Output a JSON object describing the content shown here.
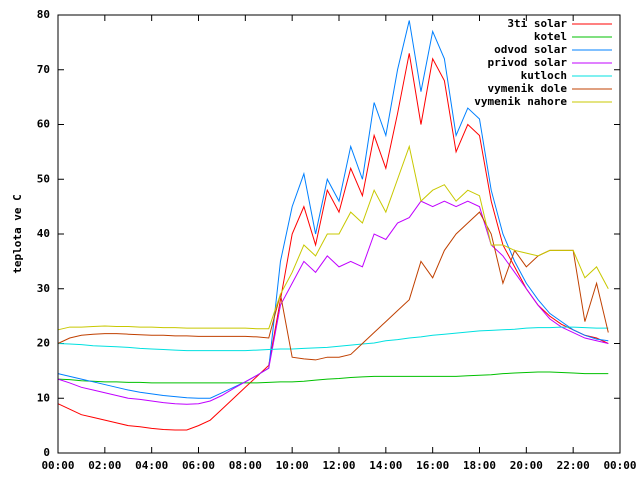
{
  "chart_data": {
    "type": "line",
    "ylabel": "teplota ve C",
    "xlim": [
      0,
      24
    ],
    "ylim": [
      0,
      80
    ],
    "yticks": [
      0,
      10,
      20,
      30,
      40,
      50,
      60,
      70,
      80
    ],
    "xticks": [
      {
        "value": 0,
        "label": "00:00"
      },
      {
        "value": 2,
        "label": "02:00"
      },
      {
        "value": 4,
        "label": "04:00"
      },
      {
        "value": 6,
        "label": "06:00"
      },
      {
        "value": 8,
        "label": "08:00"
      },
      {
        "value": 10,
        "label": "10:00"
      },
      {
        "value": 12,
        "label": "12:00"
      },
      {
        "value": 14,
        "label": "14:00"
      },
      {
        "value": 16,
        "label": "16:00"
      },
      {
        "value": 18,
        "label": "18:00"
      },
      {
        "value": 20,
        "label": "20:00"
      },
      {
        "value": 22,
        "label": "22:00"
      },
      {
        "value": 24,
        "label": "00:00"
      }
    ],
    "legend": "top-right",
    "x": [
      0,
      0.5,
      1,
      1.5,
      2,
      2.5,
      3,
      3.5,
      4,
      4.5,
      5,
      5.5,
      6,
      6.5,
      7,
      7.5,
      8,
      8.5,
      9,
      9.5,
      10,
      10.5,
      11,
      11.5,
      12,
      12.5,
      13,
      13.5,
      14,
      14.5,
      15,
      15.5,
      16,
      16.5,
      17,
      17.5,
      18,
      18.5,
      19,
      19.5,
      20,
      20.5,
      21,
      21.5,
      22,
      22.5,
      23,
      23.5
    ],
    "series": [
      {
        "name": "3ti solar",
        "color": "#ff0000",
        "values": [
          9,
          8,
          7,
          6.5,
          6,
          5.5,
          5,
          4.8,
          4.5,
          4.3,
          4.2,
          4.2,
          5,
          6,
          8,
          10,
          12,
          14,
          16,
          28,
          40,
          45,
          38,
          48,
          44,
          52,
          47,
          58,
          52,
          62,
          73,
          60,
          72,
          68,
          55,
          60,
          58,
          46,
          38,
          34,
          30,
          27,
          25,
          23.5,
          22.5,
          21.5,
          21,
          20
        ]
      },
      {
        "name": "kotel",
        "color": "#00c000",
        "values": [
          13.5,
          13.4,
          13.2,
          13.1,
          13,
          13,
          12.9,
          12.9,
          12.8,
          12.8,
          12.8,
          12.8,
          12.8,
          12.8,
          12.8,
          12.8,
          12.8,
          12.8,
          12.9,
          13,
          13,
          13.1,
          13.3,
          13.5,
          13.6,
          13.8,
          13.9,
          14,
          14,
          14,
          14,
          14,
          14,
          14,
          14,
          14.1,
          14.2,
          14.3,
          14.5,
          14.6,
          14.7,
          14.8,
          14.8,
          14.7,
          14.6,
          14.5,
          14.5,
          14.5
        ]
      },
      {
        "name": "odvod solar",
        "color": "#0080ff",
        "values": [
          14.5,
          14,
          13.5,
          13,
          12.5,
          12,
          11.5,
          11.1,
          10.8,
          10.5,
          10.3,
          10.1,
          10,
          10,
          11,
          12,
          13,
          14.2,
          15.5,
          35,
          45,
          51,
          40,
          50,
          46,
          56,
          50,
          64,
          58,
          70,
          79,
          66,
          77,
          72,
          58,
          63,
          61,
          48,
          40,
          35,
          31,
          28,
          25.5,
          24,
          22.5,
          21.5,
          20.8,
          20.5
        ]
      },
      {
        "name": "privod solar",
        "color": "#c000ff",
        "values": [
          13.5,
          12.8,
          12,
          11.5,
          11,
          10.5,
          10,
          9.8,
          9.5,
          9.2,
          9,
          8.9,
          9,
          9.5,
          10.5,
          11.8,
          13,
          14.2,
          15.5,
          27,
          31,
          35,
          33,
          36,
          34,
          35,
          34,
          40,
          39,
          42,
          43,
          46,
          45,
          46,
          45,
          46,
          45,
          38,
          36,
          33,
          30,
          27,
          24.5,
          23,
          22,
          21,
          20.5,
          20
        ]
      },
      {
        "name": "kutloch",
        "color": "#00e0e0",
        "values": [
          20,
          19.9,
          19.8,
          19.6,
          19.5,
          19.4,
          19.3,
          19.1,
          19,
          18.9,
          18.8,
          18.7,
          18.7,
          18.7,
          18.7,
          18.7,
          18.7,
          18.8,
          18.9,
          19,
          19,
          19.1,
          19.2,
          19.3,
          19.5,
          19.7,
          19.9,
          20.1,
          20.5,
          20.7,
          21,
          21.2,
          21.5,
          21.7,
          21.9,
          22.1,
          22.3,
          22.4,
          22.5,
          22.6,
          22.8,
          22.9,
          22.9,
          23,
          23,
          22.9,
          22.8,
          22.8
        ]
      },
      {
        "name": "vymenik dole",
        "color": "#c04000",
        "values": [
          20,
          21,
          21.5,
          21.7,
          21.8,
          21.8,
          21.7,
          21.6,
          21.5,
          21.5,
          21.4,
          21.4,
          21.3,
          21.3,
          21.3,
          21.3,
          21.3,
          21.2,
          21,
          29,
          17.5,
          17.2,
          17,
          17.5,
          17.5,
          18,
          20,
          22,
          24,
          26,
          28,
          35,
          32,
          37,
          40,
          42,
          44,
          40,
          31,
          37,
          34,
          36,
          37,
          37,
          37,
          24,
          31,
          22
        ]
      },
      {
        "name": "vymenik nahore",
        "color": "#c8c800",
        "values": [
          22.5,
          23,
          23,
          23.1,
          23.2,
          23.1,
          23.1,
          23,
          23,
          22.9,
          22.9,
          22.8,
          22.8,
          22.8,
          22.8,
          22.8,
          22.8,
          22.7,
          22.7,
          29,
          33,
          38,
          36,
          40,
          40,
          44,
          42,
          48,
          44,
          50,
          56,
          46,
          48,
          49,
          46,
          48,
          47,
          38,
          38,
          37,
          36.5,
          36,
          37,
          37,
          37,
          32,
          34,
          30
        ]
      }
    ]
  }
}
